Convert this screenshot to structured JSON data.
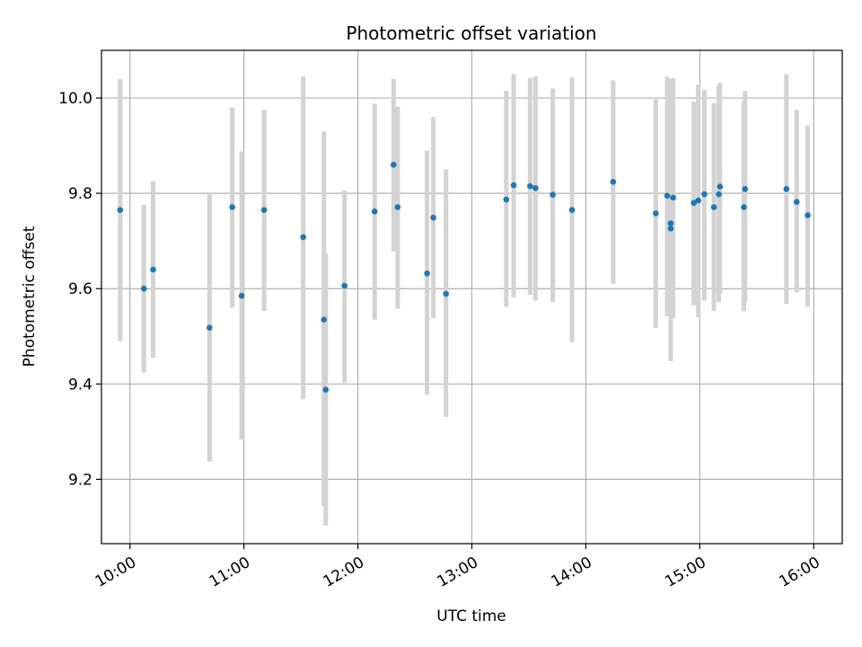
{
  "chart_data": {
    "type": "scatter",
    "title": "Photometric offset variation",
    "xlabel": "UTC time",
    "ylabel": "Photometric offset",
    "xlim": [
      9.75,
      16.25
    ],
    "ylim": [
      9.065,
      10.1
    ],
    "grid": true,
    "colors": {
      "point": "#1f77b4",
      "errorbar": "#d3d3d3",
      "grid": "#b0b0b0",
      "axes": "#000000"
    },
    "x_ticks": [
      {
        "value": 10,
        "label": "10:00"
      },
      {
        "value": 11,
        "label": "11:00"
      },
      {
        "value": 12,
        "label": "12:00"
      },
      {
        "value": 13,
        "label": "13:00"
      },
      {
        "value": 14,
        "label": "14:00"
      },
      {
        "value": 15,
        "label": "15:00"
      },
      {
        "value": 16,
        "label": "16:00"
      }
    ],
    "y_ticks": [
      {
        "value": 9.2,
        "label": "9.2"
      },
      {
        "value": 9.4,
        "label": "9.4"
      },
      {
        "value": 9.6,
        "label": "9.6"
      },
      {
        "value": 9.8,
        "label": "9.8"
      },
      {
        "value": 10.0,
        "label": "10.0"
      }
    ],
    "series": [
      {
        "name": "photometric offset",
        "x": [
          9.914,
          10.122,
          10.203,
          10.698,
          10.898,
          10.98,
          11.177,
          11.52,
          11.702,
          11.718,
          11.883,
          12.147,
          12.313,
          12.349,
          12.607,
          12.662,
          12.773,
          13.302,
          13.367,
          13.511,
          13.558,
          13.71,
          13.879,
          14.24,
          14.614,
          14.714,
          14.745,
          14.745,
          14.766,
          14.947,
          14.987,
          15.04,
          15.124,
          15.167,
          15.177,
          15.387,
          15.397,
          15.76,
          15.85,
          15.947
        ],
        "y": [
          9.765,
          9.6,
          9.64,
          9.518,
          9.771,
          9.585,
          9.765,
          9.708,
          9.535,
          9.388,
          9.606,
          9.762,
          9.86,
          9.771,
          9.632,
          9.749,
          9.589,
          9.787,
          9.817,
          9.815,
          9.811,
          9.797,
          9.765,
          9.824,
          9.758,
          9.795,
          9.737,
          9.726,
          9.791,
          9.78,
          9.785,
          9.798,
          9.771,
          9.798,
          9.814,
          9.771,
          9.809,
          9.809,
          9.782,
          9.754
        ],
        "ylow": [
          9.49,
          9.424,
          9.455,
          9.237,
          9.56,
          9.283,
          9.553,
          9.368,
          9.144,
          9.103,
          9.403,
          9.535,
          9.678,
          9.558,
          9.377,
          9.538,
          9.331,
          9.562,
          9.582,
          9.587,
          9.575,
          9.572,
          9.488,
          9.61,
          9.518,
          9.542,
          9.448,
          9.468,
          9.538,
          9.565,
          9.54,
          9.575,
          9.553,
          9.572,
          9.59,
          9.552,
          9.57,
          9.568,
          9.592,
          9.562
        ],
        "yhigh": [
          10.04,
          9.776,
          9.825,
          9.8,
          9.98,
          9.888,
          9.975,
          10.045,
          9.93,
          9.673,
          9.806,
          9.988,
          10.04,
          9.982,
          9.89,
          9.96,
          9.85,
          10.015,
          10.05,
          10.042,
          10.045,
          10.02,
          10.043,
          10.037,
          9.997,
          10.045,
          10.04,
          10.038,
          10.042,
          9.992,
          10.028,
          10.017,
          9.99,
          10.025,
          10.032,
          9.992,
          10.015,
          10.05,
          9.975,
          9.942
        ]
      }
    ]
  }
}
